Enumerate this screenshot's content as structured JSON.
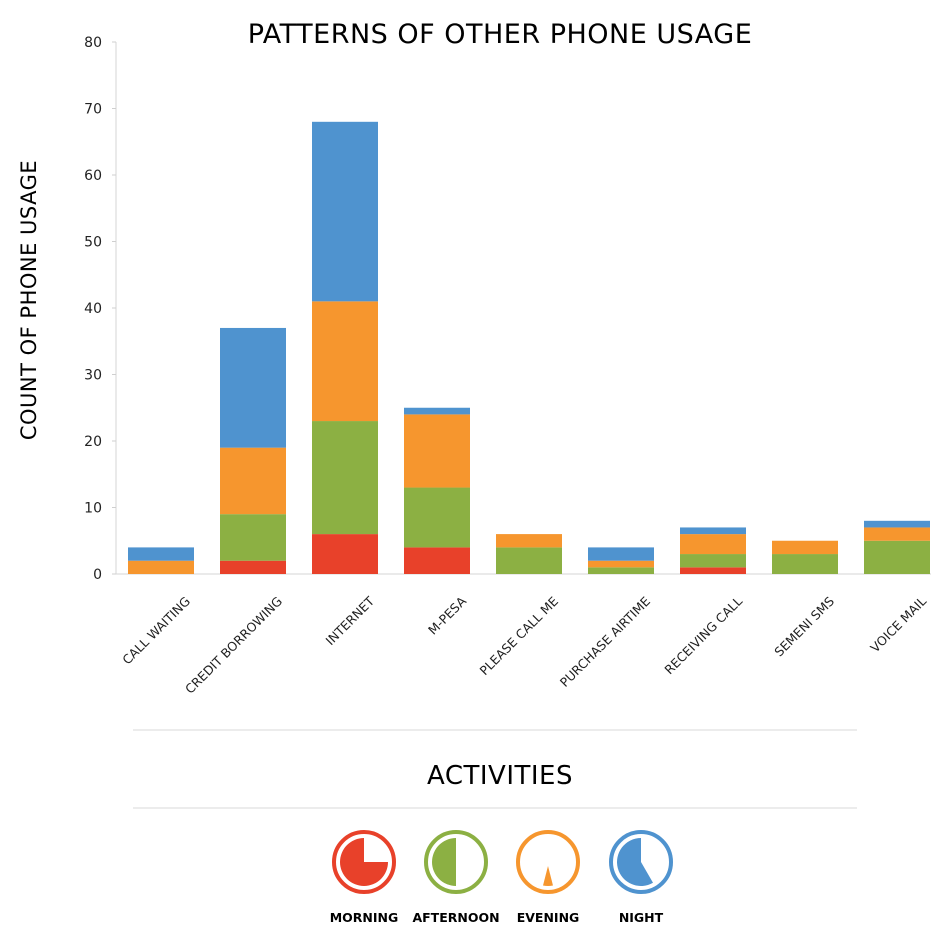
{
  "chart_data": {
    "type": "bar",
    "stacked": true,
    "title": "PATTERNS OF OTHER PHONE USAGE",
    "xlabel": "ACTIVITIES",
    "ylabel": "COUNT OF PHONE USAGE",
    "ylim": [
      0,
      80
    ],
    "yticks": [
      0,
      10,
      20,
      30,
      40,
      50,
      60,
      70,
      80
    ],
    "grid": false,
    "legend_position": "bottom",
    "categories": [
      "CALL WAITING",
      "CREDIT BORROWING",
      "INTERNET",
      "M-PESA",
      "PLEASE CALL ME",
      "PURCHASE AIRTIME",
      "RECEIVING CALL",
      "SEMENI SMS",
      "VOICE MAIL"
    ],
    "series": [
      {
        "name": "MORNING",
        "color": "#e8412a",
        "icon": "clock-quarter-icon",
        "values": [
          0,
          2,
          6,
          4,
          0,
          0,
          1,
          0,
          0
        ]
      },
      {
        "name": "AFTERNOON",
        "color": "#8cb043",
        "icon": "clock-half-icon",
        "values": [
          0,
          7,
          17,
          9,
          4,
          1,
          2,
          3,
          5
        ]
      },
      {
        "name": "EVENING",
        "color": "#f6962e",
        "icon": "clock-evening-icon",
        "values": [
          2,
          10,
          18,
          11,
          2,
          1,
          3,
          2,
          2
        ]
      },
      {
        "name": "NIGHT",
        "color": "#4f93cf",
        "icon": "clock-night-icon",
        "values": [
          2,
          18,
          27,
          1,
          0,
          2,
          1,
          0,
          1
        ]
      }
    ]
  }
}
